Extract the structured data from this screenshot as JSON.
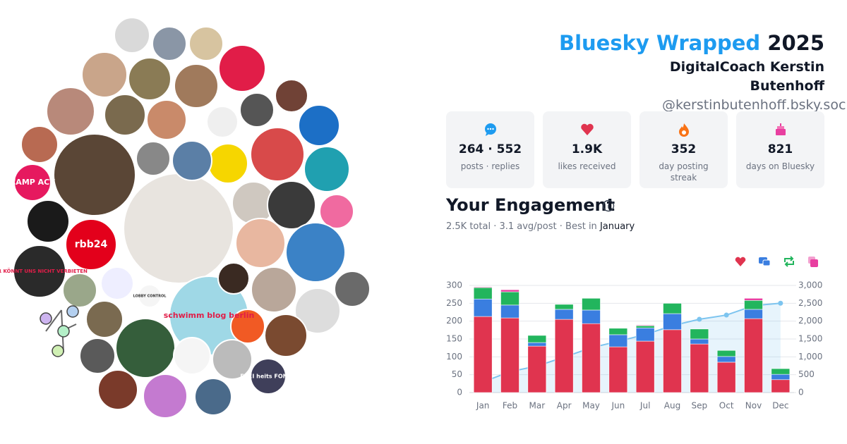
{
  "header": {
    "title": "Bluesky Wrapped",
    "year": "2025",
    "name": "DigitalCoach Kerstin Butenhoff",
    "handle": "@kerstinbutenhoff.bsky.social"
  },
  "bubble_labels": [
    "CAMP ACT",
    "rbb24",
    "IHR KÖNNT UNS NICHT VERBIETEN",
    "schwimm blog berlin",
    "FREI heits FONDS",
    "LOBBY CONTROL"
  ],
  "stats": [
    {
      "value": "264 · 552",
      "label": "posts · replies"
    },
    {
      "value": "1.9K",
      "label": "likes received"
    },
    {
      "value": "352",
      "label": "day posting streak"
    },
    {
      "value": "821",
      "label": "days on Bluesky"
    }
  ],
  "engagement": {
    "title": "Your Engagement",
    "summary": "2.5K total · 3.1 avg/post · Best in",
    "best": "January"
  },
  "chart_data": {
    "type": "bar",
    "stacked": true,
    "grid": true,
    "categories": [
      "Jan",
      "Feb",
      "Mar",
      "Apr",
      "May",
      "Jun",
      "Jul",
      "Aug",
      "Sep",
      "Oct",
      "Nov",
      "Dec"
    ],
    "series": [
      {
        "color": "#e0344f",
        "values": [
          213,
          209,
          130,
          205,
          193,
          128,
          144,
          176,
          136,
          85,
          207,
          36
        ]
      },
      {
        "color": "#3a7ee0",
        "values": [
          49,
          36,
          10,
          28,
          38,
          34,
          37,
          45,
          14,
          16,
          26,
          15
        ]
      },
      {
        "color": "#22b55d",
        "values": [
          32,
          37,
          20,
          14,
          33,
          18,
          6,
          29,
          28,
          17,
          25,
          16
        ]
      },
      {
        "color": "#e83fa0",
        "values": [
          2,
          6,
          0,
          0,
          0,
          0,
          2,
          0,
          0,
          0,
          6,
          0
        ]
      },
      {
        "type": "line",
        "axis": "y2",
        "color": "#7cc4ef",
        "values": [
          296,
          584,
          744,
          991,
          1255,
          1435,
          1624,
          1874,
          2052,
          2170,
          2434,
          2501
        ]
      }
    ],
    "ylim": [
      0,
      300
    ],
    "yticks": [
      0,
      50,
      100,
      150,
      200,
      250,
      300
    ],
    "y2lim": [
      0,
      3000
    ],
    "y2ticks": [
      0,
      {
        "value": 500,
        "label": "500"
      },
      {
        "value": 1000,
        "label": "1,000"
      },
      {
        "value": 1500,
        "label": "1,500"
      },
      {
        "value": 2000,
        "label": "2,000"
      },
      {
        "value": 2500,
        "label": "2,500"
      },
      {
        "value": 3000,
        "label": "3,000"
      }
    ]
  }
}
